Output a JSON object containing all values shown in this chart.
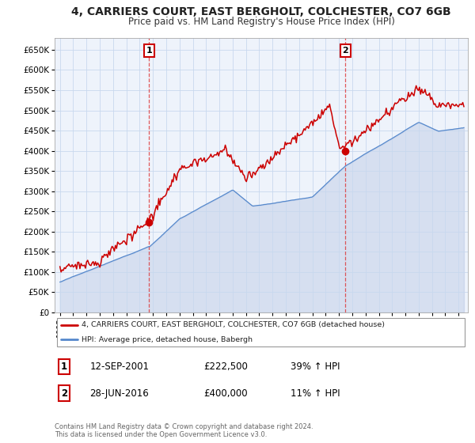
{
  "title": "4, CARRIERS COURT, EAST BERGHOLT, COLCHESTER, CO7 6GB",
  "subtitle": "Price paid vs. HM Land Registry's House Price Index (HPI)",
  "background_color": "#ffffff",
  "chart_bg_color": "#eef3fb",
  "grid_color": "#c8d8ee",
  "red_color": "#cc0000",
  "blue_color": "#5588cc",
  "blue_fill_color": "#aabbdd",
  "sale1_date": "12-SEP-2001",
  "sale1_price": 222500,
  "sale1_hpi": "39% ↑ HPI",
  "sale1_x": 2001.71,
  "sale2_date": "28-JUN-2016",
  "sale2_price": 400000,
  "sale2_hpi": "11% ↑ HPI",
  "sale2_x": 2016.49,
  "legend_label1": "4, CARRIERS COURT, EAST BERGHOLT, COLCHESTER, CO7 6GB (detached house)",
  "legend_label2": "HPI: Average price, detached house, Babergh",
  "footnote": "Contains HM Land Registry data © Crown copyright and database right 2024.\nThis data is licensed under the Open Government Licence v3.0.",
  "yticks": [
    0,
    50000,
    100000,
    150000,
    200000,
    250000,
    300000,
    350000,
    400000,
    450000,
    500000,
    550000,
    600000,
    650000
  ],
  "ytick_labels": [
    "£0",
    "£50K",
    "£100K",
    "£150K",
    "£200K",
    "£250K",
    "£300K",
    "£350K",
    "£400K",
    "£450K",
    "£500K",
    "£550K",
    "£600K",
    "£650K"
  ]
}
